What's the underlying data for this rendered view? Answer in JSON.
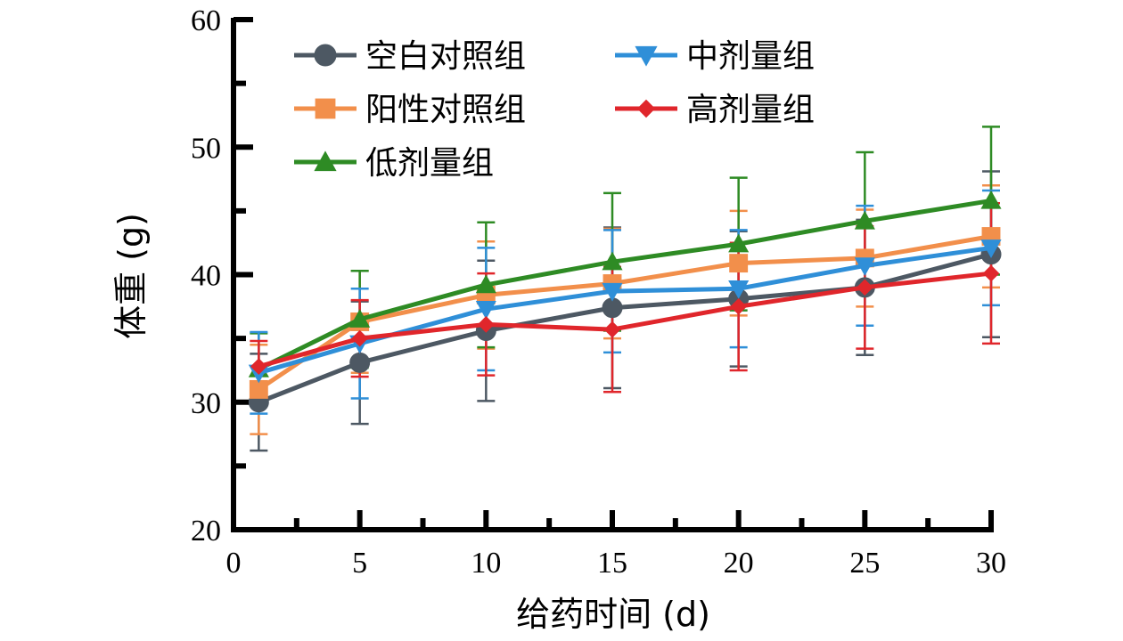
{
  "chart_data": {
    "type": "line",
    "xlabel": "给药时间 (d)",
    "ylabel": "体重 (g)",
    "xlim": [
      0,
      30
    ],
    "ylim": [
      20,
      60
    ],
    "xticks": [
      0,
      5,
      10,
      15,
      20,
      25,
      30
    ],
    "yticks": [
      20,
      30,
      40,
      50,
      60
    ],
    "x": [
      1,
      5,
      10,
      15,
      20,
      25,
      30
    ],
    "grid": false,
    "legend_position": "top-left",
    "series": [
      {
        "name": "空白对照组",
        "color": "#4d5863",
        "marker": "circle",
        "values": [
          30.0,
          33.1,
          35.6,
          37.4,
          38.1,
          39.0,
          41.6
        ],
        "errors": [
          3.8,
          4.8,
          5.5,
          6.3,
          5.3,
          5.3,
          6.5
        ]
      },
      {
        "name": "阳性对照组",
        "color": "#f28f4b",
        "marker": "square",
        "values": [
          31.0,
          36.3,
          38.4,
          39.3,
          40.9,
          41.3,
          43.0
        ],
        "errors": [
          3.5,
          4.0,
          4.2,
          4.3,
          4.1,
          3.8,
          4.0
        ]
      },
      {
        "name": "低剂量组",
        "color": "#2e8b24",
        "marker": "triangle-up",
        "values": [
          32.6,
          36.5,
          39.2,
          41.0,
          42.4,
          44.2,
          45.8
        ],
        "errors": [
          2.8,
          3.8,
          4.9,
          5.4,
          5.2,
          5.4,
          5.8
        ]
      },
      {
        "name": "中剂量组",
        "color": "#2f8fd8",
        "marker": "triangle-down",
        "values": [
          32.3,
          34.6,
          37.3,
          38.7,
          38.9,
          40.7,
          42.1
        ],
        "errors": [
          3.2,
          4.3,
          4.8,
          4.8,
          4.6,
          4.7,
          4.5
        ]
      },
      {
        "name": "高剂量组",
        "color": "#e0262b",
        "marker": "diamond",
        "values": [
          32.8,
          35.0,
          36.1,
          35.7,
          37.5,
          39.0,
          40.1
        ],
        "errors": [
          2.0,
          3.0,
          4.0,
          4.9,
          5.0,
          4.8,
          5.5
        ]
      }
    ]
  }
}
